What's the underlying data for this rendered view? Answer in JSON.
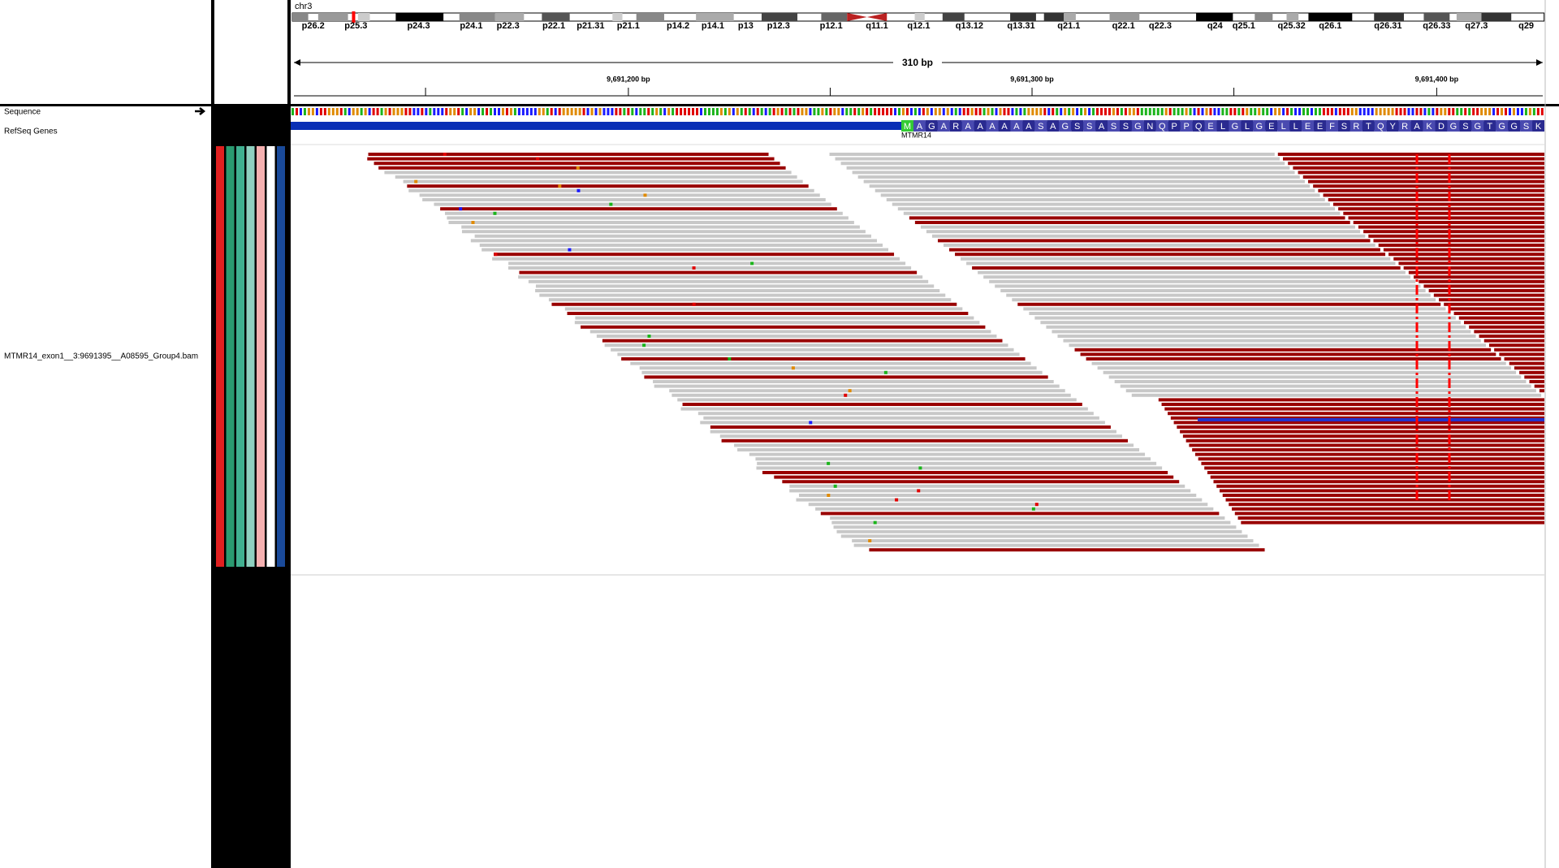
{
  "header": {
    "chromosome": "chr3",
    "bands": [
      "p26.2",
      "p25.3",
      "p24.3",
      "p24.1",
      "p22.3",
      "p22.1",
      "p21.31",
      "p21.1",
      "p14.2",
      "p14.1",
      "p13",
      "p12.3",
      "p12.1",
      "q11.1",
      "q12.1",
      "q13.12",
      "q13.31",
      "q21.1",
      "q22.1",
      "q22.3",
      "q24",
      "q25.1",
      "q25.32",
      "q26.1",
      "q26.31",
      "q26.33",
      "q27.3",
      "q29"
    ],
    "span": "310 bp",
    "positions": [
      "9,691,200 bp",
      "9,691,300 bp",
      "9,691,400 bp"
    ]
  },
  "tracks": {
    "sequence": "Sequence",
    "refseq": "RefSeq Genes",
    "gene": "MTMR14",
    "amino_acids": [
      "M",
      "A",
      "G",
      "A",
      "R",
      "A",
      "A",
      "A",
      "A",
      "A",
      "A",
      "S",
      "A",
      "G",
      "S",
      "S",
      "A",
      "S",
      "S",
      "G",
      "N",
      "Q",
      "P",
      "P",
      "Q",
      "E",
      "L",
      "G",
      "L",
      "G",
      "E",
      "L",
      "L",
      "E",
      "E",
      "F",
      "S",
      "R",
      "T",
      "Q",
      "Y",
      "R",
      "A",
      "K",
      "D",
      "G",
      "S",
      "G",
      "T",
      "G",
      "G",
      "S",
      "K"
    ],
    "alignment": "MTMR14_exon1__3:9691395__A08595_Group4.bam"
  }
}
